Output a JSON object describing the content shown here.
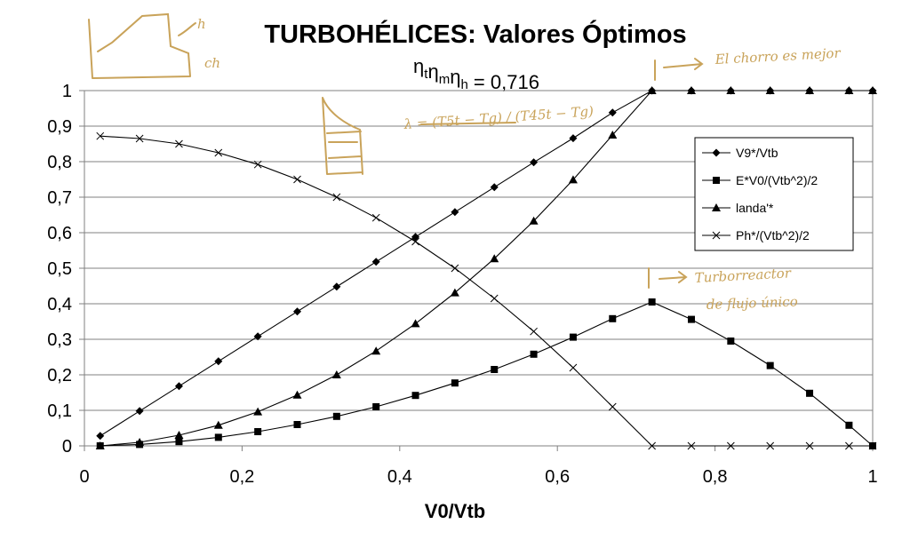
{
  "chart_data": {
    "type": "line",
    "title": "TURBOHÉLICES: Valores Óptimos",
    "subtitle": {
      "base": "η",
      "subs": [
        "t",
        "m",
        "h"
      ],
      "suffix": " = 0,716"
    },
    "xlabel": "V0/Vtb",
    "ylabel": "",
    "xlim": [
      0,
      1
    ],
    "ylim": [
      0,
      1
    ],
    "x_ticks": [
      "0",
      "0,2",
      "0,4",
      "0,6",
      "0,8",
      "1"
    ],
    "y_ticks": [
      "0",
      "0,1",
      "0,2",
      "0,3",
      "0,4",
      "0,5",
      "0,6",
      "0,7",
      "0,8",
      "0,9",
      "1"
    ],
    "grid": "horizontal",
    "legend_position": "right",
    "x": [
      0.02,
      0.07,
      0.12,
      0.17,
      0.22,
      0.27,
      0.32,
      0.37,
      0.42,
      0.47,
      0.52,
      0.57,
      0.62,
      0.67,
      0.72,
      0.77,
      0.82,
      0.87,
      0.92,
      0.97,
      1.0
    ],
    "series": [
      {
        "name": "V9*/Vtb",
        "marker": "diamond",
        "values": [
          0.028,
          0.098,
          0.168,
          0.238,
          0.308,
          0.378,
          0.448,
          0.518,
          0.588,
          0.658,
          0.728,
          0.798,
          0.866,
          0.938,
          1.0,
          1.0,
          1.0,
          1.0,
          1.0,
          1.0,
          1.0
        ]
      },
      {
        "name": "E*V0/(Vtb^2)/2",
        "marker": "square",
        "values": [
          0.0,
          0.004,
          0.012,
          0.024,
          0.04,
          0.06,
          0.083,
          0.11,
          0.142,
          0.177,
          0.215,
          0.258,
          0.306,
          0.358,
          0.405,
          0.356,
          0.295,
          0.226,
          0.148,
          0.058,
          0.0
        ]
      },
      {
        "name": "landa'*",
        "marker": "triangle",
        "values": [
          0.0,
          0.01,
          0.03,
          0.058,
          0.096,
          0.143,
          0.2,
          0.267,
          0.344,
          0.431,
          0.527,
          0.633,
          0.749,
          0.875,
          1.0,
          1.0,
          1.0,
          1.0,
          1.0,
          1.0,
          1.0
        ]
      },
      {
        "name": "Ph*/(Vtb^2)/2",
        "marker": "x",
        "values": [
          0.872,
          0.865,
          0.85,
          0.825,
          0.792,
          0.75,
          0.7,
          0.642,
          0.575,
          0.5,
          0.415,
          0.322,
          0.22,
          0.11,
          0.0,
          0.0,
          0.0,
          0.0,
          0.0,
          0.0,
          0.0
        ]
      }
    ],
    "annotations": [
      {
        "text": "El chorro es mejor"
      },
      {
        "text": "Turborreactor"
      },
      {
        "text": "de flujo único"
      },
      {
        "text": "λ = (T5t − Tg) / (T45t − Tg)"
      },
      {
        "text": "ch"
      },
      {
        "text": "h"
      }
    ],
    "colors": {
      "line": "#000000",
      "grid": "#808080",
      "handwriting": "#c9a35a"
    }
  }
}
